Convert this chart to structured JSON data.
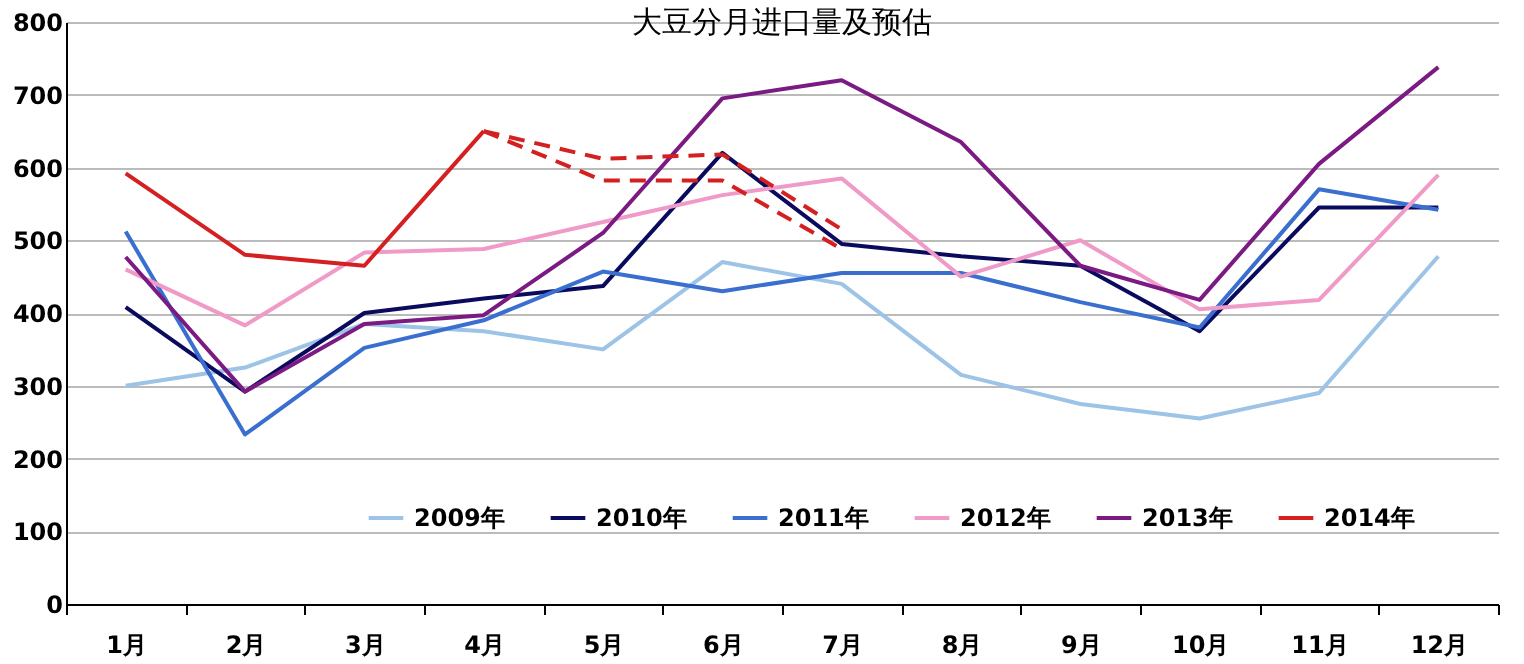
{
  "chart_data": {
    "type": "line",
    "title": "大豆分月进口量及预估",
    "categories": [
      "1月",
      "2月",
      "3月",
      "4月",
      "5月",
      "6月",
      "7月",
      "8月",
      "9月",
      "10月",
      "11月",
      "12月"
    ],
    "series": [
      {
        "name": "2009年",
        "color": "#9dc3e6",
        "values": [
          300,
          325,
          385,
          375,
          350,
          470,
          440,
          315,
          275,
          255,
          290,
          478
        ]
      },
      {
        "name": "2010年",
        "color": "#0a0a5e",
        "values": [
          408,
          292,
          400,
          420,
          437,
          620,
          495,
          478,
          465,
          375,
          545,
          545
        ]
      },
      {
        "name": "2011年",
        "color": "#3a6fd0",
        "values": [
          512,
          233,
          352,
          390,
          457,
          430,
          455,
          455,
          415,
          380,
          570,
          542
        ]
      },
      {
        "name": "2012年",
        "color": "#f09ac8",
        "values": [
          460,
          383,
          483,
          488,
          525,
          562,
          585,
          450,
          500,
          405,
          418,
          590
        ]
      },
      {
        "name": "2013年",
        "color": "#7a1a82",
        "values": [
          477,
          292,
          385,
          397,
          510,
          695,
          720,
          635,
          465,
          418,
          605,
          738
        ]
      },
      {
        "name": "2014年",
        "color": "#d42020",
        "values": [
          592,
          480,
          465,
          650,
          null,
          null,
          null,
          null,
          null,
          null,
          null,
          null
        ]
      },
      {
        "color": "#d42020",
        "line_style": "dashed",
        "values": [
          null,
          null,
          null,
          650,
          612,
          618,
          515,
          null,
          null,
          null,
          null,
          null
        ]
      },
      {
        "color": "#d42020",
        "line_style": "dashed",
        "values": [
          null,
          null,
          null,
          650,
          582,
          582,
          488,
          null,
          null,
          null,
          null,
          null
        ]
      }
    ],
    "ylim": [
      0,
      800
    ],
    "yticks": [
      0,
      100,
      200,
      300,
      400,
      500,
      600,
      700,
      800
    ],
    "grid": "y",
    "legend": "bottom",
    "line_style": "solid",
    "marker": "none"
  }
}
